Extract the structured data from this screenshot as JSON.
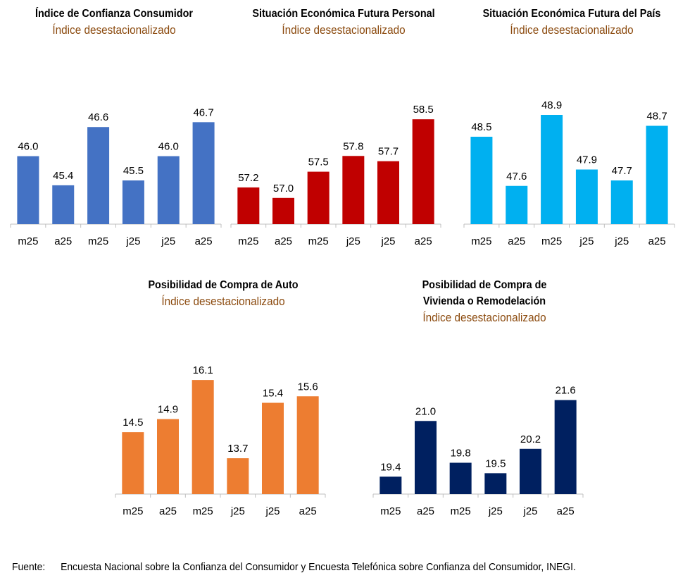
{
  "chart_data": [
    {
      "type": "bar",
      "title": "Índice de Confianza Consumidor",
      "subtitle": "Índice desestacionalizado",
      "categories": [
        "m25",
        "a25",
        "m25",
        "j25",
        "j25",
        "a25"
      ],
      "values": [
        46.0,
        45.4,
        46.6,
        45.5,
        46.0,
        46.7
      ],
      "value_labels": [
        "46.0",
        "45.4",
        "46.6",
        "45.5",
        "46.0",
        "46.7"
      ],
      "ylim": [
        44.6,
        47.3
      ],
      "color": "#4472C4",
      "grid": false
    },
    {
      "type": "bar",
      "title": "Situación Económica Futura Personal",
      "subtitle": "Índice desestacionalizado",
      "categories": [
        "m25",
        "a25",
        "m25",
        "j25",
        "j25",
        "a25"
      ],
      "values": [
        57.2,
        57.0,
        57.5,
        57.8,
        57.7,
        58.5
      ],
      "value_labels": [
        "57.2",
        "57.0",
        "57.5",
        "57.8",
        "57.7",
        "58.5"
      ],
      "ylim": [
        56.5,
        59.0
      ],
      "color": "#C00000",
      "grid": false
    },
    {
      "type": "bar",
      "title": "Situación Económica Futura del País",
      "subtitle": "Índice desestacionalizado",
      "categories": [
        "m25",
        "a25",
        "m25",
        "j25",
        "j25",
        "a25"
      ],
      "values": [
        48.5,
        47.6,
        48.9,
        47.9,
        47.7,
        48.7
      ],
      "value_labels": [
        "48.5",
        "47.6",
        "48.9",
        "47.9",
        "47.7",
        "48.7"
      ],
      "ylim": [
        46.9,
        49.3
      ],
      "color": "#00B0F0",
      "grid": false
    },
    {
      "type": "bar",
      "title": "Posibilidad de Compra de Auto",
      "subtitle": "Índice desestacionalizado",
      "categories": [
        "m25",
        "a25",
        "m25",
        "j25",
        "j25",
        "a25"
      ],
      "values": [
        14.5,
        14.9,
        16.1,
        13.7,
        15.4,
        15.6
      ],
      "value_labels": [
        "14.5",
        "14.9",
        "16.1",
        "13.7",
        "15.4",
        "15.6"
      ],
      "ylim": [
        12.6,
        16.6
      ],
      "color": "#ED7D31",
      "grid": false
    },
    {
      "type": "bar",
      "title": "Posibilidad de Compra de Vivienda o Remodelación",
      "subtitle": "Índice desestacionalizado",
      "categories": [
        "m25",
        "a25",
        "m25",
        "j25",
        "j25",
        "a25"
      ],
      "values": [
        19.4,
        21.0,
        19.8,
        19.5,
        20.2,
        21.6
      ],
      "value_labels": [
        "19.4",
        "21.0",
        "19.8",
        "19.5",
        "20.2",
        "21.6"
      ],
      "ylim": [
        18.9,
        22.2
      ],
      "color": "#002060",
      "grid": false
    }
  ],
  "source": {
    "label": "Fuente:",
    "text": "Encuesta Nacional sobre la Confianza del  Consumidor y Encuesta Telefónica sobre Confianza del Consumidor, INEGI."
  }
}
